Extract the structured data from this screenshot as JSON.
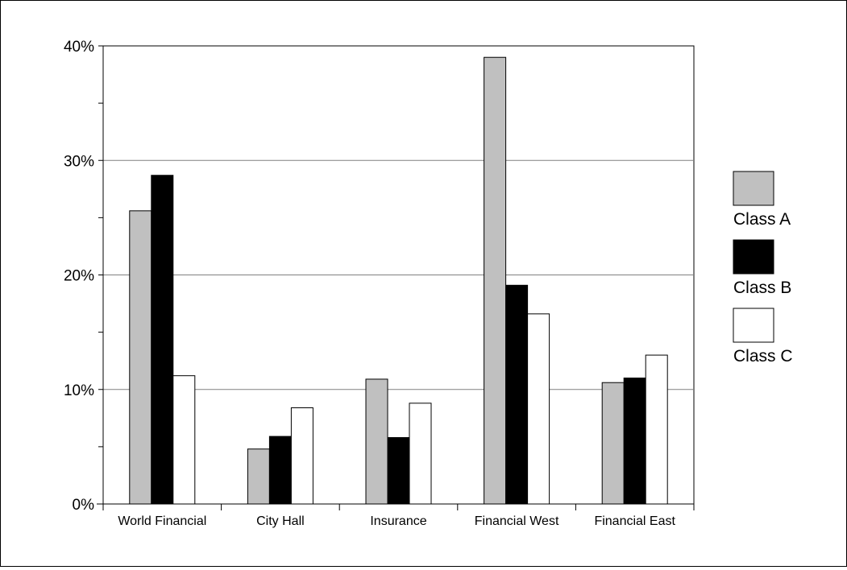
{
  "chart_data": {
    "type": "bar",
    "title": "",
    "xlabel": "",
    "ylabel": "",
    "categories": [
      "World Financial",
      "City Hall",
      "Insurance",
      "Financial West",
      "Financial East"
    ],
    "series": [
      {
        "name": "Class A",
        "color": "#c0c0c0",
        "values": [
          25.6,
          4.8,
          10.9,
          39.0,
          10.6
        ]
      },
      {
        "name": "Class B",
        "color": "#000000",
        "values": [
          28.7,
          5.9,
          5.8,
          19.1,
          11.0
        ]
      },
      {
        "name": "Class C",
        "color": "#ffffff",
        "values": [
          11.2,
          8.4,
          8.8,
          16.6,
          13.0
        ]
      }
    ],
    "ylim": [
      0,
      40
    ],
    "y_ticks": [
      0,
      10,
      20,
      30,
      40
    ],
    "y_tick_labels": [
      "0%",
      "10%",
      "20%",
      "30%",
      "40%"
    ],
    "y_minor_tick_step": 5,
    "grid": "horizontal major gridlines",
    "legend_position": "right"
  }
}
